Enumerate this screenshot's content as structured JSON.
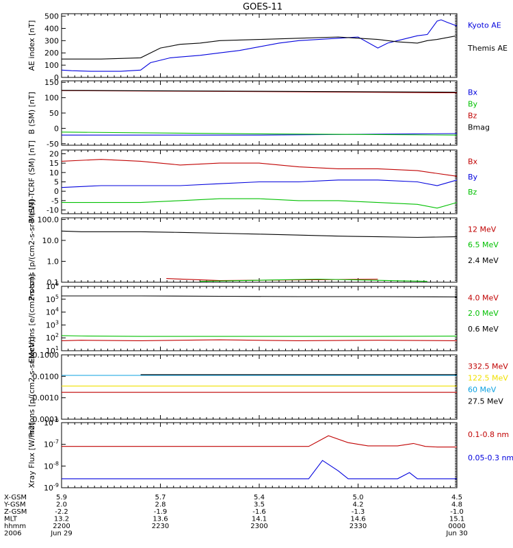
{
  "figure": {
    "title": "GOES-11"
  },
  "colors": {
    "black": "#000000",
    "red": "#c00000",
    "green": "#00c000",
    "blue": "#0000dd",
    "yellow": "#f0e000",
    "cyan": "#0aa0e0"
  },
  "time_axis": {
    "tick_hours": [
      22.0,
      22.5,
      23.0,
      23.5,
      24.0
    ],
    "rows": [
      {
        "name": "X-GSM",
        "values": [
          "5.9",
          "5.7",
          "5.4",
          "5.0",
          "4.5"
        ]
      },
      {
        "name": "Y-GSM",
        "values": [
          "2.0",
          "2.8",
          "3.5",
          "4.2",
          "4.8"
        ]
      },
      {
        "name": "Z-GSM",
        "values": [
          "-2.2",
          "-1.9",
          "-1.6",
          "-1.3",
          "-1.0"
        ]
      },
      {
        "name": "MLT",
        "values": [
          "13.2",
          "13.6",
          "14.1",
          "14.6",
          "15.1"
        ]
      },
      {
        "name": "hhmm",
        "values": [
          "2200",
          "2230",
          "2300",
          "2330",
          "0000"
        ]
      },
      {
        "name": "2006",
        "values": [
          "Jun 29",
          "",
          "",
          "",
          "Jun 30"
        ]
      }
    ]
  },
  "chart_data": [
    {
      "type": "line",
      "ylabel": "AE index [nT]",
      "ylim": [
        0,
        520
      ],
      "scale": "linear",
      "yticks": [
        0,
        100,
        200,
        300,
        400,
        500
      ],
      "yticklabels": [
        "0",
        "100",
        "200",
        "300",
        "400",
        "500"
      ],
      "x_unit": "hours UT (Jun 29)",
      "series": [
        {
          "name": "Kyoto AE",
          "color": "#0000dd",
          "x": [
            22.0,
            22.05,
            22.15,
            22.3,
            22.4,
            22.45,
            22.55,
            22.7,
            22.8,
            22.9,
            23.0,
            23.1,
            23.2,
            23.3,
            23.4,
            23.5,
            23.6,
            23.65,
            23.7,
            23.8,
            23.85,
            23.9,
            23.92,
            23.95,
            24.0
          ],
          "y": [
            60,
            55,
            50,
            50,
            60,
            120,
            160,
            180,
            200,
            220,
            250,
            280,
            300,
            310,
            320,
            330,
            240,
            280,
            300,
            340,
            350,
            460,
            470,
            450,
            420
          ]
        },
        {
          "name": "Themis AE",
          "color": "#000000",
          "x": [
            22.0,
            22.2,
            22.4,
            22.5,
            22.6,
            22.7,
            22.8,
            23.0,
            23.2,
            23.4,
            23.6,
            23.7,
            23.8,
            23.85,
            23.9,
            24.0
          ],
          "y": [
            150,
            150,
            160,
            240,
            270,
            280,
            300,
            310,
            320,
            330,
            310,
            290,
            280,
            300,
            310,
            340
          ]
        }
      ]
    },
    {
      "type": "line",
      "ylabel": "B (SM) [nT]",
      "ylim": [
        -55,
        155
      ],
      "scale": "linear",
      "yticks": [
        -50,
        0,
        50,
        100,
        150
      ],
      "yticklabels": [
        "-50",
        "0",
        "50",
        "100",
        "150"
      ],
      "series": [
        {
          "name": "Bx",
          "color": "#0000dd",
          "x": [
            22.0,
            23.0,
            24.0
          ],
          "y": [
            -22,
            -22,
            -17
          ]
        },
        {
          "name": "By",
          "color": "#00c000",
          "x": [
            22.0,
            23.0,
            24.0
          ],
          "y": [
            -12,
            -18,
            -22
          ]
        },
        {
          "name": "Bz",
          "color": "#c00000",
          "x": [
            22.0,
            23.0,
            24.0
          ],
          "y": [
            123,
            120,
            116
          ]
        },
        {
          "name": "Bmag",
          "color": "#000000",
          "x": [
            22.0,
            23.0,
            24.0
          ],
          "y": [
            124,
            121,
            118
          ]
        }
      ]
    },
    {
      "type": "line",
      "ylabel": "B (SM)-TCRF (SM) [nT]",
      "ylim": [
        -12,
        22
      ],
      "scale": "linear",
      "yticks": [
        -10,
        -5,
        0,
        5,
        10,
        15,
        20
      ],
      "yticklabels": [
        "-10",
        "-5",
        "0",
        "5",
        "10",
        "15",
        "20"
      ],
      "series": [
        {
          "name": "Bx",
          "color": "#c00000",
          "x": [
            22.0,
            22.2,
            22.4,
            22.6,
            22.8,
            23.0,
            23.2,
            23.4,
            23.6,
            23.8,
            24.0
          ],
          "y": [
            16,
            17,
            16,
            14,
            15,
            15,
            13,
            12,
            12,
            11,
            8
          ]
        },
        {
          "name": "By",
          "color": "#0000dd",
          "x": [
            22.0,
            22.2,
            22.4,
            22.6,
            22.8,
            23.0,
            23.2,
            23.4,
            23.6,
            23.8,
            23.9,
            24.0
          ],
          "y": [
            2,
            3,
            3,
            3,
            4,
            5,
            5,
            6,
            6,
            5,
            3,
            6
          ]
        },
        {
          "name": "Bz",
          "color": "#00c000",
          "x": [
            22.0,
            22.2,
            22.4,
            22.6,
            22.8,
            23.0,
            23.2,
            23.4,
            23.6,
            23.8,
            23.9,
            24.0
          ],
          "y": [
            -6,
            -6,
            -6,
            -5,
            -4,
            -4,
            -5,
            -5,
            -6,
            -7,
            -9,
            -6
          ]
        }
      ]
    },
    {
      "type": "line",
      "ylabel": "Protons [p/(cm2-s-sr-MeV)]",
      "ylim": [
        0.1,
        120
      ],
      "scale": "log",
      "yticks": [
        0.1,
        1,
        10,
        100
      ],
      "yticklabels": [
        "0.1",
        "1.0",
        "10.0",
        "100.0"
      ],
      "series": [
        {
          "name": "12 MeV",
          "color": "#c00000",
          "x": [
            22.53,
            22.8,
            23.6
          ],
          "y": [
            0.15,
            0.12,
            0.14
          ]
        },
        {
          "name": "6.5 MeV",
          "color": "#00c000",
          "x": [
            22.7,
            23.3,
            23.85
          ],
          "y": [
            0.11,
            0.14,
            0.11
          ]
        },
        {
          "name": "2.4 MeV",
          "color": "#000000",
          "x": [
            22.0,
            22.1,
            22.4,
            22.6,
            22.8,
            23.0,
            23.2,
            23.4,
            23.6,
            23.8,
            24.0
          ],
          "y": [
            28,
            26,
            26,
            24,
            22,
            20,
            18,
            16,
            15,
            14,
            15
          ]
        }
      ]
    },
    {
      "type": "line",
      "ylabel": "Electrons [e/(cm2-s-sr)]",
      "ylim": [
        10,
        1000000
      ],
      "scale": "log",
      "yticks": [
        10,
        100,
        1000,
        10000,
        100000,
        1000000
      ],
      "yticklabels": [
        "10^1",
        "10^2",
        "10^3",
        "10^4",
        "10^5",
        "10^6"
      ],
      "series": [
        {
          "name": "4.0 MeV",
          "color": "#c00000",
          "x": [
            22.0,
            22.1,
            22.4,
            22.8,
            23.2,
            23.6,
            24.0
          ],
          "y": [
            60,
            65,
            60,
            70,
            60,
            65,
            60
          ]
        },
        {
          "name": "2.0 MeV",
          "color": "#00c000",
          "x": [
            22.0,
            22.1,
            22.4,
            23.0,
            23.6,
            24.0
          ],
          "y": [
            150,
            140,
            130,
            130,
            130,
            135
          ]
        },
        {
          "name": "0.6 MeV",
          "color": "#000000",
          "x": [
            22.0,
            22.1,
            22.4,
            22.8,
            23.2,
            23.6,
            24.0
          ],
          "y": [
            180000,
            180000,
            180000,
            170000,
            160000,
            160000,
            150000
          ]
        }
      ]
    },
    {
      "type": "line",
      "ylabel": "Protons [p/(cm2-s-sr-MeV)]",
      "ylim": [
        0.0001,
        0.1
      ],
      "scale": "log",
      "yticks": [
        0.0001,
        0.001,
        0.01,
        0.1
      ],
      "yticklabels": [
        "0.0001",
        "0.0010",
        "0.0100",
        "0.1000"
      ],
      "series": [
        {
          "name": "332.5 MeV",
          "color": "#c00000",
          "x": [
            22.0,
            22.1,
            22.4,
            22.8,
            23.2,
            23.6,
            24.0
          ],
          "y": [
            0.0018,
            0.0018,
            0.0018,
            0.0018,
            0.0018,
            0.0018,
            0.0018
          ]
        },
        {
          "name": "122.5 MeV",
          "color": "#f0e000",
          "x": [
            22.0,
            22.1,
            22.4,
            22.8,
            23.2,
            23.6,
            24.0
          ],
          "y": [
            0.0035,
            0.0035,
            0.0035,
            0.0035,
            0.0035,
            0.0035,
            0.0035
          ]
        },
        {
          "name": "60 MeV",
          "color": "#0aa0e0",
          "x": [
            22.0,
            22.1,
            22.4,
            22.8,
            23.2,
            23.6,
            24.0
          ],
          "y": [
            0.011,
            0.011,
            0.011,
            0.011,
            0.011,
            0.011,
            0.011
          ]
        },
        {
          "name": "27.5 MeV",
          "color": "#000000",
          "x": [
            22.4,
            22.8,
            23.2,
            23.6,
            24.0
          ],
          "y": [
            0.012,
            0.012,
            0.012,
            0.012,
            0.012
          ]
        }
      ]
    },
    {
      "type": "line",
      "ylabel": "Xray Flux [W/m2]",
      "ylim": [
        1e-09,
        1e-06
      ],
      "scale": "log",
      "yticks": [
        1e-09,
        1e-08,
        1e-07,
        1e-06
      ],
      "yticklabels": [
        "10^-9",
        "10^-8",
        "10^-7",
        "10^-6"
      ],
      "series": [
        {
          "name": "0.1-0.8 nm",
          "color": "#c00000",
          "x": [
            22.0,
            22.5,
            23.0,
            23.25,
            23.35,
            23.45,
            23.55,
            23.7,
            23.78,
            23.84,
            23.9,
            24.0
          ],
          "y": [
            8e-08,
            8e-08,
            8e-08,
            8e-08,
            2.5e-07,
            1.2e-07,
            8.5e-08,
            8.5e-08,
            1.1e-07,
            8e-08,
            7.5e-08,
            7.5e-08
          ]
        },
        {
          "name": "0.05-0.3 nm",
          "color": "#0000dd",
          "x": [
            22.0,
            22.5,
            23.0,
            23.25,
            23.32,
            23.4,
            23.45,
            23.55,
            23.7,
            23.76,
            23.8,
            23.9,
            24.0
          ],
          "y": [
            2.6e-09,
            2.6e-09,
            2.6e-09,
            2.6e-09,
            1.8e-08,
            6e-09,
            2.6e-09,
            2.6e-09,
            2.6e-09,
            5e-09,
            2.6e-09,
            2.6e-09,
            2.6e-09
          ]
        }
      ]
    }
  ]
}
